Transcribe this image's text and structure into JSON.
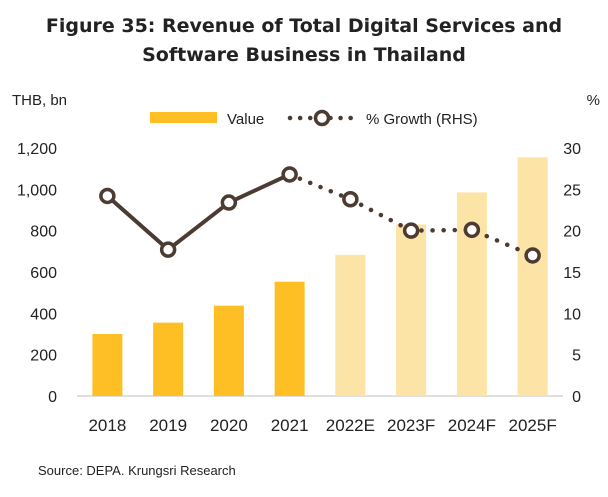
{
  "title_line1": "Figure 35: Revenue of Total Digital Services and",
  "title_line2": "Software Business in Thailand",
  "left_unit": "THB, bn",
  "right_unit": "%",
  "source": "Source: DEPA. Krungsri Research",
  "colors": {
    "actual": "#FDBF24",
    "forecast": "#FCE4A6",
    "growth": "#4B3B33"
  },
  "chart_data": {
    "type": "bar",
    "categories": [
      "2018",
      "2019",
      "2020",
      "2021",
      "2022E",
      "2023F",
      "2024F",
      "2025F"
    ],
    "series": [
      {
        "name": "Value",
        "type": "bar",
        "axis": "left",
        "values": [
          300,
          355,
          437,
          553,
          683,
          830,
          985,
          1155
        ],
        "forecast": [
          false,
          false,
          false,
          false,
          true,
          true,
          true,
          true
        ]
      },
      {
        "name": "% Growth (RHS)",
        "type": "line",
        "axis": "right",
        "values": [
          24.2,
          17.7,
          23.4,
          26.8,
          23.8,
          20.0,
          20.1,
          17.0
        ]
      }
    ],
    "ylim": [
      0,
      1200
    ],
    "yticks": [
      "0",
      "200",
      "400",
      "600",
      "800",
      "1,000",
      "1,200"
    ],
    "y2lim": [
      0,
      30
    ],
    "y2ticks": [
      "0",
      "5",
      "10",
      "15",
      "20",
      "25",
      "30"
    ],
    "legend": "top"
  }
}
